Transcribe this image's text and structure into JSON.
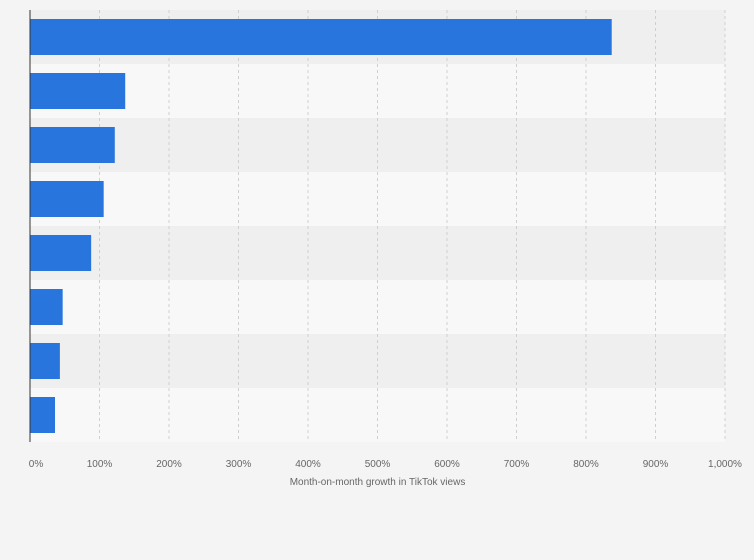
{
  "chart_data": {
    "type": "bar",
    "orientation": "horizontal",
    "title": "",
    "xlabel": "Month-on-month growth in TikTok views",
    "ylabel": "",
    "xlim": [
      0,
      1000
    ],
    "x_unit": "%",
    "categories": [
      "",
      "",
      "",
      "",
      "",
      "",
      "",
      ""
    ],
    "values": [
      837,
      137,
      122,
      106,
      88,
      47,
      43,
      36
    ],
    "x_ticks": [
      0,
      100,
      200,
      300,
      400,
      500,
      600,
      700,
      800,
      900,
      1000
    ],
    "x_tick_labels": [
      "0%",
      "100%",
      "200%",
      "300%",
      "400%",
      "500%",
      "600%",
      "700%",
      "800%",
      "900%",
      "1,000%"
    ],
    "grid": "vertical dashed",
    "legend": "none",
    "colors": {
      "bar": "#2876dd",
      "row_band_dark": "#efefef",
      "row_band_light": "#f8f8f8",
      "grid": "#cfcfcf",
      "axis": "#333333",
      "text": "#666666",
      "background": "#f4f4f4"
    }
  }
}
